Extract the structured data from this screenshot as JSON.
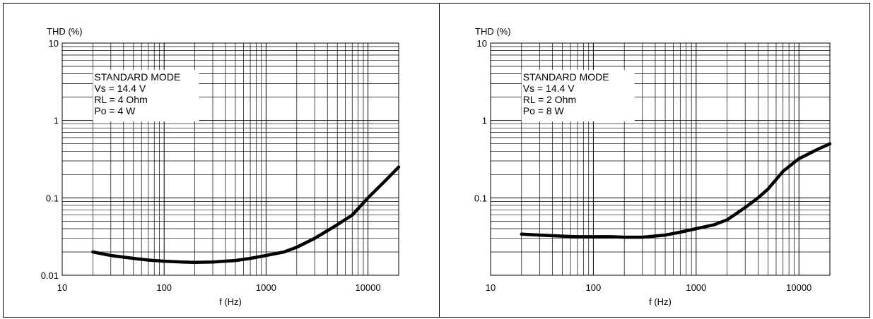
{
  "chart_data": [
    {
      "type": "line",
      "title": "",
      "xlabel": "f (Hz)",
      "ylabel": "THD (%)",
      "xscale": "log",
      "yscale": "log",
      "xlim": [
        10,
        20000
      ],
      "ylim": [
        0.01,
        10
      ],
      "x_ticks": [
        10,
        100,
        1000,
        10000
      ],
      "x_tick_labels": [
        "10",
        "100",
        "1000",
        "10000"
      ],
      "y_ticks": [
        0.01,
        0.1,
        1,
        10
      ],
      "y_tick_labels": [
        "0.01",
        "0.1",
        "1",
        "10"
      ],
      "grid": true,
      "annotation": [
        "STANDARD MODE",
        "Vs = 14.4 V",
        "RL = 4 Ohm",
        "Po = 4 W"
      ],
      "series": [
        {
          "x": [
            20,
            30,
            50,
            70,
            100,
            150,
            200,
            300,
            500,
            700,
            1000,
            1500,
            2000,
            3000,
            5000,
            7000,
            10000,
            15000,
            20000
          ],
          "y": [
            0.02,
            0.018,
            0.0165,
            0.0157,
            0.0152,
            0.0148,
            0.0147,
            0.0148,
            0.0155,
            0.0165,
            0.018,
            0.02,
            0.023,
            0.03,
            0.045,
            0.06,
            0.1,
            0.17,
            0.25
          ]
        }
      ]
    },
    {
      "type": "line",
      "title": "",
      "xlabel": "f (Hz)",
      "ylabel": "THD (%)",
      "xscale": "log",
      "yscale": "log",
      "xlim": [
        10,
        20000
      ],
      "ylim": [
        0.01,
        10
      ],
      "x_ticks": [
        10,
        100,
        1000,
        10000
      ],
      "x_tick_labels": [
        "10",
        "100",
        "1000",
        "10000"
      ],
      "y_ticks": [
        0.1,
        1,
        10
      ],
      "y_tick_labels": [
        "0.1",
        "1",
        "10"
      ],
      "grid": true,
      "annotation": [
        "STANDARD MODE",
        "Vs = 14.4 V",
        "RL = 2 Ohm",
        "Po = 8 W"
      ],
      "series": [
        {
          "x": [
            20,
            30,
            50,
            70,
            100,
            150,
            200,
            300,
            500,
            700,
            1000,
            1500,
            2000,
            3000,
            4000,
            5000,
            7000,
            10000,
            15000,
            20000
          ],
          "y": [
            0.034,
            0.033,
            0.032,
            0.0315,
            0.0315,
            0.0315,
            0.031,
            0.031,
            0.033,
            0.036,
            0.04,
            0.045,
            0.052,
            0.075,
            0.1,
            0.13,
            0.22,
            0.32,
            0.42,
            0.5
          ]
        }
      ]
    }
  ]
}
